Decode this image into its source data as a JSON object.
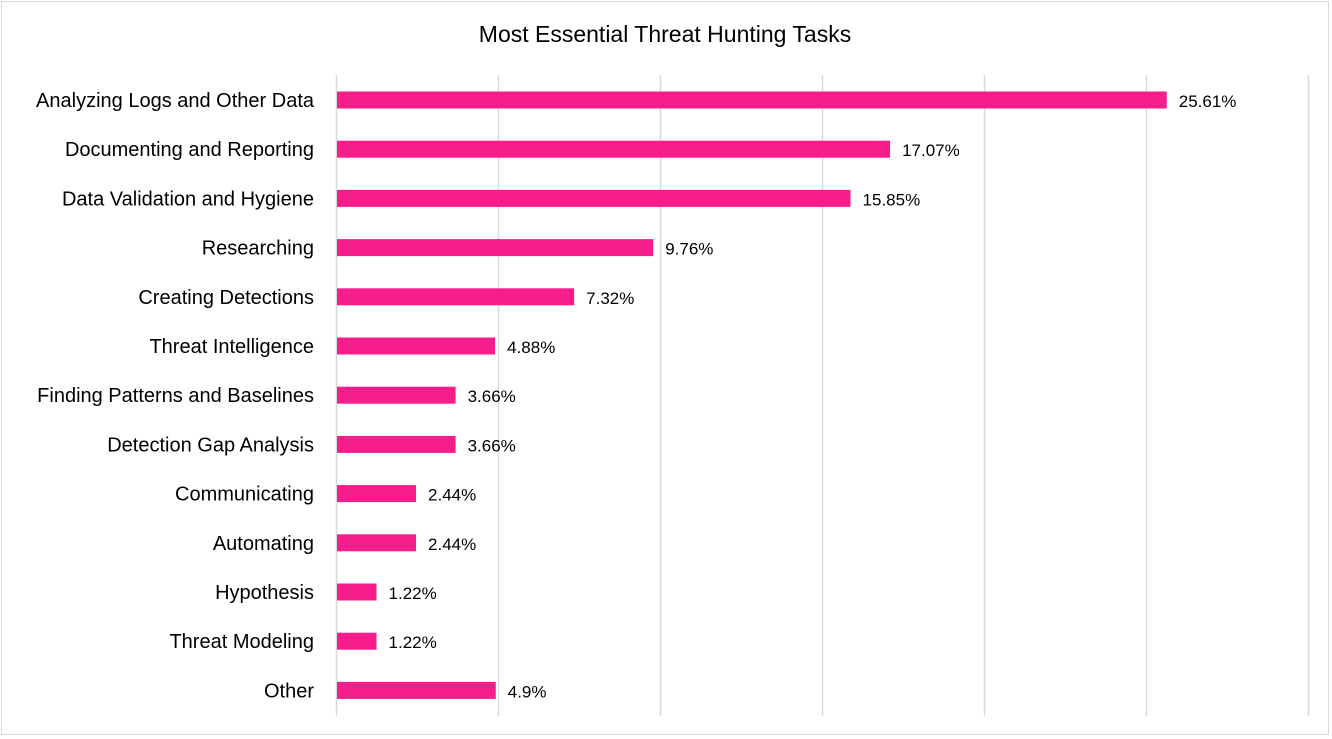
{
  "chart_data": {
    "type": "bar",
    "orientation": "horizontal",
    "title": "Most Essential Threat Hunting Tasks",
    "xlabel": "",
    "ylabel": "",
    "xlim": [
      0,
      30
    ],
    "grid": "vertical",
    "legend": "none",
    "bar_color": "#f71e8c",
    "grid_color": "#d9d9d9",
    "categories": [
      "Analyzing Logs and Other Data",
      "Documenting and Reporting",
      "Data Validation and Hygiene",
      "Researching",
      "Creating Detections",
      "Threat Intelligence",
      "Finding Patterns and Baselines",
      "Detection Gap Analysis",
      "Communicating",
      "Automating",
      "Hypothesis",
      "Threat Modeling",
      "Other"
    ],
    "values": [
      25.61,
      17.07,
      15.85,
      9.76,
      7.32,
      4.88,
      3.66,
      3.66,
      2.44,
      2.44,
      1.22,
      1.22,
      4.9
    ],
    "data_labels": [
      "25.61%",
      "17.07%",
      "15.85%",
      "9.76%",
      "7.32%",
      "4.88%",
      "3.66%",
      "3.66%",
      "2.44%",
      "2.44%",
      "1.22%",
      "1.22%",
      "4.9%"
    ]
  }
}
